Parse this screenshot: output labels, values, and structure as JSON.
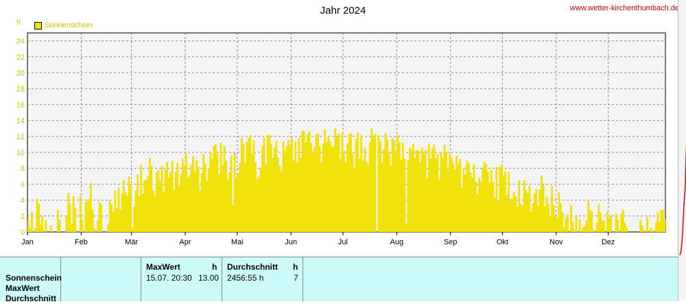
{
  "title": "Jahr 2024",
  "site": "www.wetter-kirchenthumbach.de",
  "unit": "h",
  "legend": {
    "label": "Sonnenschein",
    "color": "#f2e20c"
  },
  "chart_data": {
    "type": "bar",
    "title": "Jahr 2024",
    "ylabel": "h",
    "ylim": [
      0,
      25
    ],
    "yticks": [
      "0",
      "2",
      "4",
      "6",
      "8",
      "10",
      "12",
      "14",
      "16",
      "18",
      "20",
      "22",
      "24"
    ],
    "grid": true,
    "months": [
      "Jan",
      "Feb",
      "Mär",
      "Apr",
      "Mai",
      "Jun",
      "Jul",
      "Aug",
      "Sep",
      "Okt",
      "Nov",
      "Dez"
    ],
    "series": [
      {
        "name": "Sonnenschein",
        "color": "#f2e20c",
        "values": [
          1.5,
          0.5,
          2.5,
          0,
          0.5,
          4.2,
          3.5,
          1,
          2,
          0,
          1.5,
          0,
          0,
          0.8,
          0,
          0,
          0,
          2.8,
          1.5,
          0,
          0,
          0,
          2.1,
          4.9,
          3.5,
          1,
          4.5,
          3,
          0,
          0,
          4.5,
          1.5,
          0,
          3.8,
          3.9,
          4.2,
          6.2,
          2.8,
          0.5,
          0,
          1.5,
          3.8,
          3.5,
          0,
          0,
          0,
          1,
          4,
          3.5,
          2.5,
          5.2,
          3,
          5.5,
          2.8,
          4.8,
          6.5,
          5,
          4.6,
          7,
          6,
          0.5,
          3.2,
          5.2,
          7.2,
          4.5,
          8.5,
          4.8,
          6.5,
          6.5,
          7,
          9.3,
          8.3,
          5.2,
          4.5,
          7.6,
          7.8,
          6.5,
          8.3,
          5,
          7.8,
          8.8,
          6.8,
          7.5,
          8.9,
          5.3,
          7.5,
          8.7,
          5.8,
          7.3,
          9.2,
          8.2,
          9.9,
          6.8,
          7.1,
          8.5,
          9.5,
          7.6,
          9,
          8.2,
          5.2,
          7.4,
          9.8,
          8.6,
          6.4,
          8,
          10.1,
          9.2,
          10.8,
          11,
          9.8,
          7.2,
          11.2,
          8.3,
          10.8,
          8.9,
          6.5,
          7.5,
          9.6,
          3.4,
          9.9,
          6.8,
          7.4,
          8.7,
          11.8,
          11.1,
          8.6,
          11.3,
          11.8,
          12.2,
          9.8,
          11.5,
          8.7,
          6.6,
          6.9,
          8.1,
          10.8,
          11.8,
          8.5,
          12.2,
          12.2,
          11,
          9.3,
          10.6,
          11.5,
          9.3,
          8.3,
          7.6,
          11.4,
          10.2,
          10.8,
          11.6,
          10.7,
          11.8,
          8.9,
          11.4,
          8.7,
          11.8,
          9.3,
          12.7,
          12.6,
          11.3,
          12.3,
          12.6,
          11.2,
          9.8,
          10.6,
          12.2,
          12.4,
          10.8,
          8.7,
          11.1,
          12.9,
          11.3,
          12.1,
          11.4,
          10.6,
          10.8,
          13,
          11.9,
          12.4,
          9.2,
          12.4,
          10.2,
          8.7,
          11.1,
          12.3,
          12.4,
          9.8,
          8.1,
          11.7,
          12.5,
          9.2,
          12.2,
          8.9,
          10.6,
          8.8,
          8.4,
          11.3,
          13,
          12.1,
          12.3,
          0,
          12.2,
          11.4,
          8.7,
          10.4,
          12.4,
          11.6,
          10,
          8.3,
          11.8,
          11.5,
          10.2,
          12.2,
          11.3,
          9.1,
          11.2,
          9.2,
          1,
          9,
          10.6,
          10.3,
          11.1,
          9.3,
          10.3,
          10.2,
          8.7,
          10.6,
          9.8,
          10.3,
          6.8,
          11.1,
          9.2,
          10.5,
          11,
          9.2,
          9.8,
          6.6,
          10.1,
          9.3,
          11,
          10.1,
          7.8,
          9.8,
          9.4,
          8.6,
          7.8,
          9.6,
          8.6,
          9.2,
          5.5,
          8,
          7.2,
          9,
          8.6,
          7.5,
          6.8,
          8.5,
          6.3,
          4.8,
          6.8,
          6.3,
          8.1,
          8.8,
          8.5,
          7.6,
          6.2,
          7.8,
          6.3,
          4.3,
          8.2,
          3.8,
          8.2,
          8.5,
          7.1,
          7.6,
          4.6,
          7.5,
          3.8,
          4.2,
          5,
          4.5,
          3.2,
          6.5,
          3.5,
          3.3,
          6.5,
          5.3,
          4.9,
          5.8,
          2.5,
          3.6,
          4.8,
          5.4,
          3.3,
          5.3,
          7.1,
          6,
          3.2,
          4.4,
          3.5,
          2.1,
          5.8,
          3.4,
          2,
          1.8,
          5,
          3.6,
          2.5,
          0.6,
          1.8,
          2.2,
          0,
          3.4,
          1.2,
          0.2,
          1.9,
          0,
          1.6,
          0.2,
          0.6,
          0.8,
          1.5,
          3.9,
          2.8,
          2.6,
          0.3,
          0,
          1.2,
          3.5,
          2.4,
          1.5,
          1.4,
          0,
          2.5,
          1.8,
          2.1,
          0,
          0,
          2.3,
          1.5,
          0,
          2.3,
          2.8,
          1.2,
          0.6,
          0,
          0,
          0,
          0,
          0,
          0,
          0,
          1.5,
          0.8,
          0.3,
          0,
          1.9,
          0,
          0.6,
          0.3,
          0,
          1.2,
          2.5,
          1.3,
          2.8,
          2.8,
          1.6
        ]
      }
    ]
  },
  "panel": {
    "row_labels": [
      "Sonnenschein",
      "MaxWert",
      "Durchschnitt"
    ],
    "max_block": {
      "header": "MaxWert",
      "unit": "h",
      "datetime": "15.07.  20:30",
      "value": "13.00"
    },
    "avg_block": {
      "header": "Durchschnitt",
      "unit": "h",
      "total": "2456:55 h",
      "value": "7"
    }
  }
}
